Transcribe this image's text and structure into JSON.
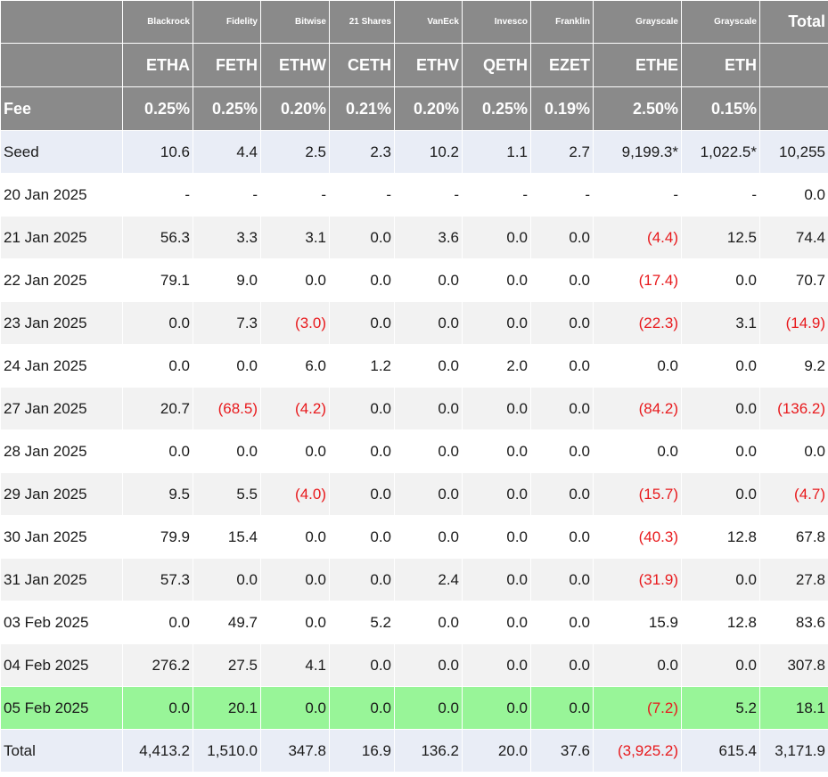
{
  "issuers": [
    "Blackrock",
    "Fidelity",
    "Bitwise",
    "21 Shares",
    "VanEck",
    "Invesco",
    "Franklin",
    "Grayscale",
    "Grayscale"
  ],
  "total_label": "Total",
  "tickers": [
    "ETHA",
    "FETH",
    "ETHW",
    "CETH",
    "ETHV",
    "QETH",
    "EZET",
    "ETHE",
    "ETH"
  ],
  "fee_label": "Fee",
  "fees": [
    "0.25%",
    "0.25%",
    "0.20%",
    "0.21%",
    "0.20%",
    "0.25%",
    "0.19%",
    "2.50%",
    "0.15%"
  ],
  "colors": {
    "header_bg": "#8a8a8a",
    "seed_bg": "#e9edf6",
    "stripe_bg": "#f2f2f2",
    "highlight_bg": "#98f598",
    "negative": "#e8191c"
  },
  "rows": [
    {
      "date": "Seed",
      "values": [
        "10.6",
        "4.4",
        "2.5",
        "2.3",
        "10.2",
        "1.1",
        "2.7",
        "9,199.3*",
        "1,022.5*"
      ],
      "total": "10,255"
    },
    {
      "date": "20 Jan 2025",
      "values": [
        "-",
        "-",
        "-",
        "-",
        "-",
        "-",
        "-",
        "-",
        "-"
      ],
      "total": "0.0"
    },
    {
      "date": "21 Jan 2025",
      "values": [
        "56.3",
        "3.3",
        "3.1",
        "0.0",
        "3.6",
        "0.0",
        "0.0",
        "(4.4)",
        "12.5"
      ],
      "total": "74.4"
    },
    {
      "date": "22 Jan 2025",
      "values": [
        "79.1",
        "9.0",
        "0.0",
        "0.0",
        "0.0",
        "0.0",
        "0.0",
        "(17.4)",
        "0.0"
      ],
      "total": "70.7"
    },
    {
      "date": "23 Jan 2025",
      "values": [
        "0.0",
        "7.3",
        "(3.0)",
        "0.0",
        "0.0",
        "0.0",
        "0.0",
        "(22.3)",
        "3.1"
      ],
      "total": "(14.9)"
    },
    {
      "date": "24 Jan 2025",
      "values": [
        "0.0",
        "0.0",
        "6.0",
        "1.2",
        "0.0",
        "2.0",
        "0.0",
        "0.0",
        "0.0"
      ],
      "total": "9.2"
    },
    {
      "date": "27 Jan 2025",
      "values": [
        "20.7",
        "(68.5)",
        "(4.2)",
        "0.0",
        "0.0",
        "0.0",
        "0.0",
        "(84.2)",
        "0.0"
      ],
      "total": "(136.2)"
    },
    {
      "date": "28 Jan 2025",
      "values": [
        "0.0",
        "0.0",
        "0.0",
        "0.0",
        "0.0",
        "0.0",
        "0.0",
        "0.0",
        "0.0"
      ],
      "total": "0.0"
    },
    {
      "date": "29 Jan 2025",
      "values": [
        "9.5",
        "5.5",
        "(4.0)",
        "0.0",
        "0.0",
        "0.0",
        "0.0",
        "(15.7)",
        "0.0"
      ],
      "total": "(4.7)"
    },
    {
      "date": "30 Jan 2025",
      "values": [
        "79.9",
        "15.4",
        "0.0",
        "0.0",
        "0.0",
        "0.0",
        "0.0",
        "(40.3)",
        "12.8"
      ],
      "total": "67.8"
    },
    {
      "date": "31 Jan 2025",
      "values": [
        "57.3",
        "0.0",
        "0.0",
        "0.0",
        "2.4",
        "0.0",
        "0.0",
        "(31.9)",
        "0.0"
      ],
      "total": "27.8"
    },
    {
      "date": "03 Feb 2025",
      "values": [
        "0.0",
        "49.7",
        "0.0",
        "5.2",
        "0.0",
        "0.0",
        "0.0",
        "15.9",
        "12.8"
      ],
      "total": "83.6"
    },
    {
      "date": "04 Feb 2025",
      "values": [
        "276.2",
        "27.5",
        "4.1",
        "0.0",
        "0.0",
        "0.0",
        "0.0",
        "0.0",
        "0.0"
      ],
      "total": "307.8"
    },
    {
      "date": "05 Feb 2025",
      "values": [
        "0.0",
        "20.1",
        "0.0",
        "0.0",
        "0.0",
        "0.0",
        "0.0",
        "(7.2)",
        "5.2"
      ],
      "total": "18.1"
    }
  ],
  "totals": {
    "label": "Total",
    "values": [
      "4,413.2",
      "1,510.0",
      "347.8",
      "16.9",
      "136.2",
      "20.0",
      "37.6",
      "(3,925.2)",
      "615.4"
    ],
    "total": "3,171.9"
  }
}
